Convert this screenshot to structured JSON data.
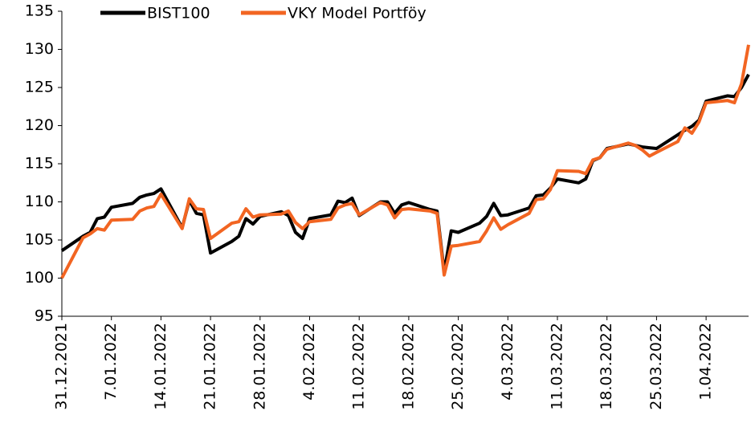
{
  "chart_data": {
    "type": "line",
    "x": [
      "31.12.2021",
      "3.01.2022",
      "4.01.2022",
      "5.01.2022",
      "6.01.2022",
      "7.01.2022",
      "10.01.2022",
      "11.01.2022",
      "12.01.2022",
      "13.01.2022",
      "14.01.2022",
      "17.01.2022",
      "18.01.2022",
      "19.01.2022",
      "20.01.2022",
      "21.01.2022",
      "24.01.2022",
      "25.01.2022",
      "26.01.2022",
      "27.01.2022",
      "28.01.2022",
      "31.01.2022",
      "1.02.2022",
      "2.02.2022",
      "3.02.2022",
      "4.02.2022",
      "7.02.2022",
      "8.02.2022",
      "9.02.2022",
      "10.02.2022",
      "11.02.2022",
      "14.02.2022",
      "15.02.2022",
      "16.02.2022",
      "17.02.2022",
      "18.02.2022",
      "21.02.2022",
      "22.02.2022",
      "23.02.2022",
      "24.02.2022",
      "25.02.2022",
      "28.02.2022",
      "1.03.2022",
      "2.03.2022",
      "3.03.2022",
      "4.03.2022",
      "7.03.2022",
      "8.03.2022",
      "9.03.2022",
      "10.03.2022",
      "11.03.2022",
      "14.03.2022",
      "15.03.2022",
      "16.03.2022",
      "17.03.2022",
      "18.03.2022",
      "21.03.2022",
      "22.03.2022",
      "23.03.2022",
      "24.03.2022",
      "25.03.2022",
      "28.03.2022",
      "29.03.2022",
      "30.03.2022",
      "31.03.2022",
      "1.04.2022",
      "4.04.2022",
      "5.04.2022",
      "6.04.2022",
      "7.04.2022"
    ],
    "series": [
      {
        "name": "BIST100",
        "color": "#000000",
        "values": [
          103.6,
          105.5,
          106,
          107.8,
          108,
          109.3,
          109.8,
          110.6,
          110.9,
          111.1,
          111.7,
          106.6,
          110.2,
          108.5,
          108.3,
          103.3,
          104.8,
          105.5,
          107.8,
          107.1,
          108.1,
          108.7,
          108.2,
          106,
          105.2,
          107.8,
          108.3,
          110.1,
          109.9,
          110.5,
          108.2,
          110,
          110,
          108.5,
          109.6,
          109.9,
          109,
          108.8,
          100.8,
          106.2,
          106,
          107.2,
          108.1,
          109.8,
          108.2,
          108.3,
          109.2,
          110.8,
          110.9,
          111.8,
          113,
          112.5,
          113,
          115.4,
          115.8,
          117,
          117.6,
          117.4,
          117.2,
          117.1,
          117,
          118.8,
          119.4,
          119.9,
          120.7,
          123.2,
          123.9,
          123.8,
          125,
          126.7
        ]
      },
      {
        "name": "VKY Model Portföy",
        "color": "#f26522",
        "values": [
          100,
          105.3,
          105.8,
          106.5,
          106.3,
          107.6,
          107.7,
          108.8,
          109.2,
          109.4,
          111,
          106.5,
          110.4,
          109.1,
          109,
          105.2,
          107.2,
          107.4,
          109.1,
          108,
          108.3,
          108.4,
          108.8,
          107.3,
          106.5,
          107.4,
          107.7,
          109.2,
          109.6,
          109.8,
          108.3,
          109.9,
          109.6,
          107.9,
          109,
          109.1,
          108.8,
          108.5,
          100.4,
          104.2,
          104.3,
          104.8,
          106.2,
          107.9,
          106.4,
          107,
          108.5,
          110.3,
          110.4,
          111.6,
          114.1,
          114,
          113.7,
          115.5,
          115.8,
          116.9,
          117.7,
          117.4,
          116.8,
          116,
          116.5,
          117.9,
          119.7,
          119,
          120.5,
          123,
          123.3,
          123,
          125.5,
          130.6
        ]
      }
    ],
    "xlim": [
      "31.12.2021",
      "7.04.2022"
    ],
    "xticks": [
      "31.12.2021",
      "7.01.2022",
      "14.01.2022",
      "21.01.2022",
      "28.01.2022",
      "4.02.2022",
      "11.02.2022",
      "18.02.2022",
      "25.02.2022",
      "4.03.2022",
      "11.03.2022",
      "18.03.2022",
      "25.03.2022",
      "1.04.2022"
    ],
    "ylim": [
      95,
      135
    ],
    "yticks": [
      95,
      100,
      105,
      110,
      115,
      120,
      125,
      130,
      135
    ],
    "legend": "top"
  }
}
